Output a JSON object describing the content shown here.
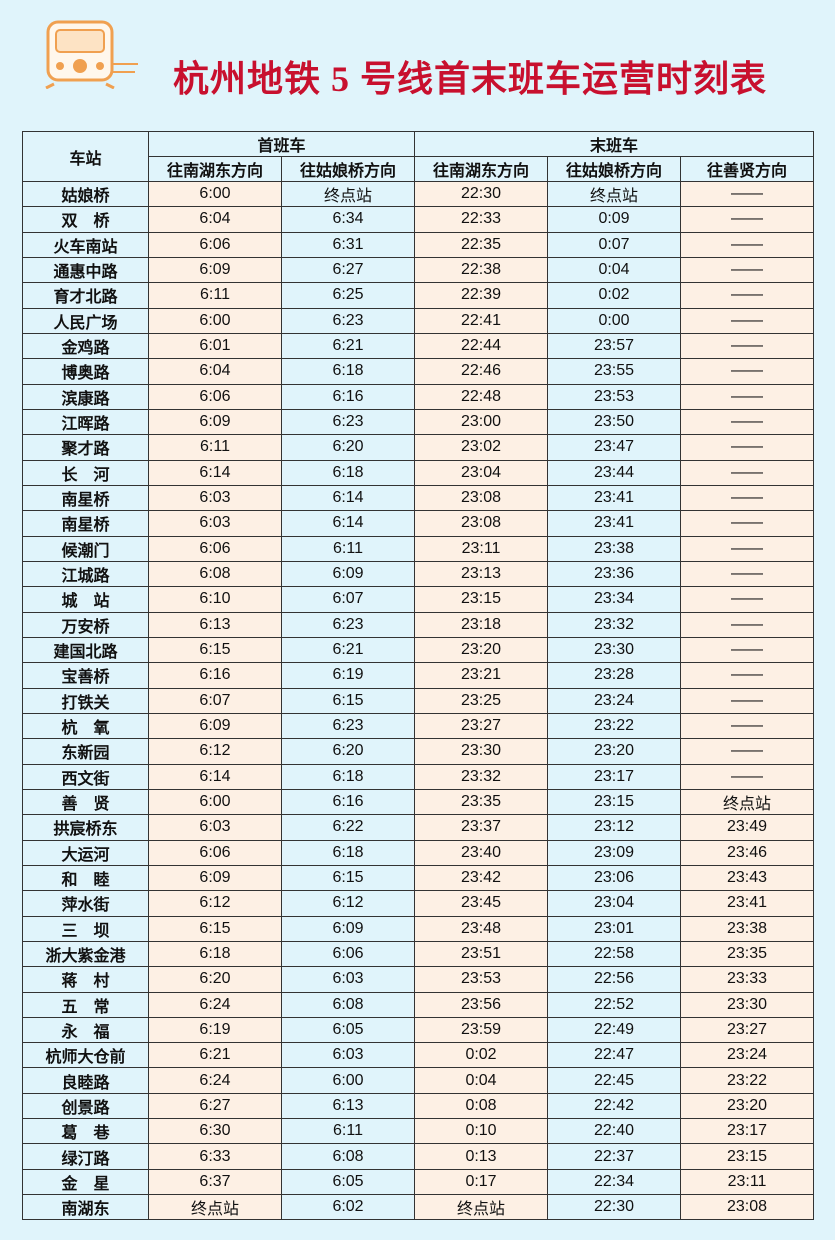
{
  "title": "杭州地铁 5 号线首末班车运营时刻表",
  "table": {
    "header": {
      "station": "车站",
      "first": "首班车",
      "last": "末班车",
      "directions": [
        "往南湖东方向",
        "往姑娘桥方向",
        "往南湖东方向",
        "往姑娘桥方向",
        "往善贤方向"
      ]
    },
    "rows": [
      [
        "姑娘桥",
        "6:00",
        "终点站",
        "22:30",
        "终点站",
        "——"
      ],
      [
        "双　桥",
        "6:04",
        "6:34",
        "22:33",
        "0:09",
        "——"
      ],
      [
        "火车南站",
        "6:06",
        "6:31",
        "22:35",
        "0:07",
        "——"
      ],
      [
        "通惠中路",
        "6:09",
        "6:27",
        "22:38",
        "0:04",
        "——"
      ],
      [
        "育才北路",
        "6:11",
        "6:25",
        "22:39",
        "0:02",
        "——"
      ],
      [
        "人民广场",
        "6:00",
        "6:23",
        "22:41",
        "0:00",
        "——"
      ],
      [
        "金鸡路",
        "6:01",
        "6:21",
        "22:44",
        "23:57",
        "——"
      ],
      [
        "博奥路",
        "6:04",
        "6:18",
        "22:46",
        "23:55",
        "——"
      ],
      [
        "滨康路",
        "6:06",
        "6:16",
        "22:48",
        "23:53",
        "——"
      ],
      [
        "江晖路",
        "6:09",
        "6:23",
        "23:00",
        "23:50",
        "——"
      ],
      [
        "聚才路",
        "6:11",
        "6:20",
        "23:02",
        "23:47",
        "——"
      ],
      [
        "长　河",
        "6:14",
        "6:18",
        "23:04",
        "23:44",
        "——"
      ],
      [
        "南星桥",
        "6:03",
        "6:14",
        "23:08",
        "23:41",
        "——"
      ],
      [
        "南星桥",
        "6:03",
        "6:14",
        "23:08",
        "23:41",
        "——"
      ],
      [
        "候潮门",
        "6:06",
        "6:11",
        "23:11",
        "23:38",
        "——"
      ],
      [
        "江城路",
        "6:08",
        "6:09",
        "23:13",
        "23:36",
        "——"
      ],
      [
        "城　站",
        "6:10",
        "6:07",
        "23:15",
        "23:34",
        "——"
      ],
      [
        "万安桥",
        "6:13",
        "6:23",
        "23:18",
        "23:32",
        "——"
      ],
      [
        "建国北路",
        "6:15",
        "6:21",
        "23:20",
        "23:30",
        "——"
      ],
      [
        "宝善桥",
        "6:16",
        "6:19",
        "23:21",
        "23:28",
        "——"
      ],
      [
        "打铁关",
        "6:07",
        "6:15",
        "23:25",
        "23:24",
        "——"
      ],
      [
        "杭　氧",
        "6:09",
        "6:23",
        "23:27",
        "23:22",
        "——"
      ],
      [
        "东新园",
        "6:12",
        "6:20",
        "23:30",
        "23:20",
        "——"
      ],
      [
        "西文街",
        "6:14",
        "6:18",
        "23:32",
        "23:17",
        "——"
      ],
      [
        "善　贤",
        "6:00",
        "6:16",
        "23:35",
        "23:15",
        "终点站"
      ],
      [
        "拱宸桥东",
        "6:03",
        "6:22",
        "23:37",
        "23:12",
        "23:49"
      ],
      [
        "大运河",
        "6:06",
        "6:18",
        "23:40",
        "23:09",
        "23:46"
      ],
      [
        "和　睦",
        "6:09",
        "6:15",
        "23:42",
        "23:06",
        "23:43"
      ],
      [
        "萍水街",
        "6:12",
        "6:12",
        "23:45",
        "23:04",
        "23:41"
      ],
      [
        "三　坝",
        "6:15",
        "6:09",
        "23:48",
        "23:01",
        "23:38"
      ],
      [
        "浙大紫金港",
        "6:18",
        "6:06",
        "23:51",
        "22:58",
        "23:35"
      ],
      [
        "蒋　村",
        "6:20",
        "6:03",
        "23:53",
        "22:56",
        "23:33"
      ],
      [
        "五　常",
        "6:24",
        "6:08",
        "23:56",
        "22:52",
        "23:30"
      ],
      [
        "永　福",
        "6:19",
        "6:05",
        "23:59",
        "22:49",
        "23:27"
      ],
      [
        "杭师大仓前",
        "6:21",
        "6:03",
        "0:02",
        "22:47",
        "23:24"
      ],
      [
        "良睦路",
        "6:24",
        "6:00",
        "0:04",
        "22:45",
        "23:22"
      ],
      [
        "创景路",
        "6:27",
        "6:13",
        "0:08",
        "22:42",
        "23:20"
      ],
      [
        "葛　巷",
        "6:30",
        "6:11",
        "0:10",
        "22:40",
        "23:17"
      ],
      [
        "绿汀路",
        "6:33",
        "6:08",
        "0:13",
        "22:37",
        "23:15"
      ],
      [
        "金　星",
        "6:37",
        "6:05",
        "0:17",
        "22:34",
        "23:11"
      ],
      [
        "南湖东",
        "终点站",
        "6:02",
        "终点站",
        "22:30",
        "23:08"
      ]
    ]
  }
}
